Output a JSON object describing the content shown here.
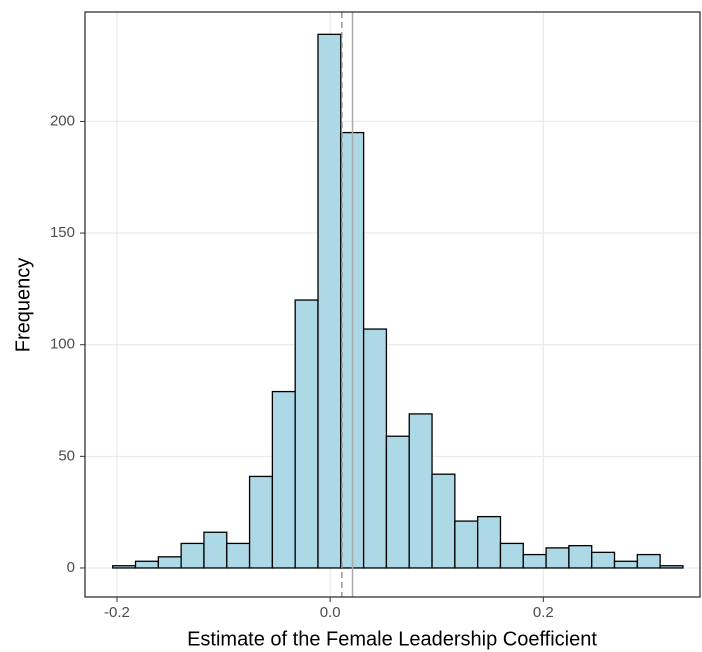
{
  "chart_data": {
    "type": "histogram",
    "x_label": "Estimate of the Female Leadership Coefficient",
    "y_label": "Frequency",
    "bins": [
      -0.204,
      -0.1826,
      -0.1612,
      -0.1398,
      -0.1184,
      -0.097,
      -0.0756,
      -0.0542,
      -0.0328,
      -0.0114,
      0.01,
      0.0314,
      0.0528,
      0.0742,
      0.0956,
      0.117,
      0.1384,
      0.1598,
      0.1812,
      0.2026,
      0.224,
      0.2454,
      0.2668,
      0.2882,
      0.3096,
      0.331
    ],
    "counts": [
      1,
      3,
      5,
      11,
      16,
      11,
      41,
      79,
      120,
      239,
      195,
      107,
      59,
      69,
      42,
      21,
      23,
      11,
      6,
      9,
      10,
      7,
      3,
      6,
      1
    ],
    "color": "#add8e6",
    "edge_color": "#000000",
    "vlines": [
      {
        "value": 0.011,
        "style": "dashed",
        "color": "#999999"
      },
      {
        "value": 0.021,
        "style": "solid",
        "color": "#aaaaaa"
      }
    ],
    "xlim": [
      -0.23,
      0.347
    ],
    "ylim": [
      -13,
      249
    ],
    "xticks": [
      {
        "value": -0.2,
        "label": "-0.2"
      },
      {
        "value": 0.0,
        "label": "0.0"
      },
      {
        "value": 0.2,
        "label": "0.2"
      }
    ],
    "yticks": [
      0,
      50,
      100,
      150,
      200
    ],
    "grid": true
  }
}
